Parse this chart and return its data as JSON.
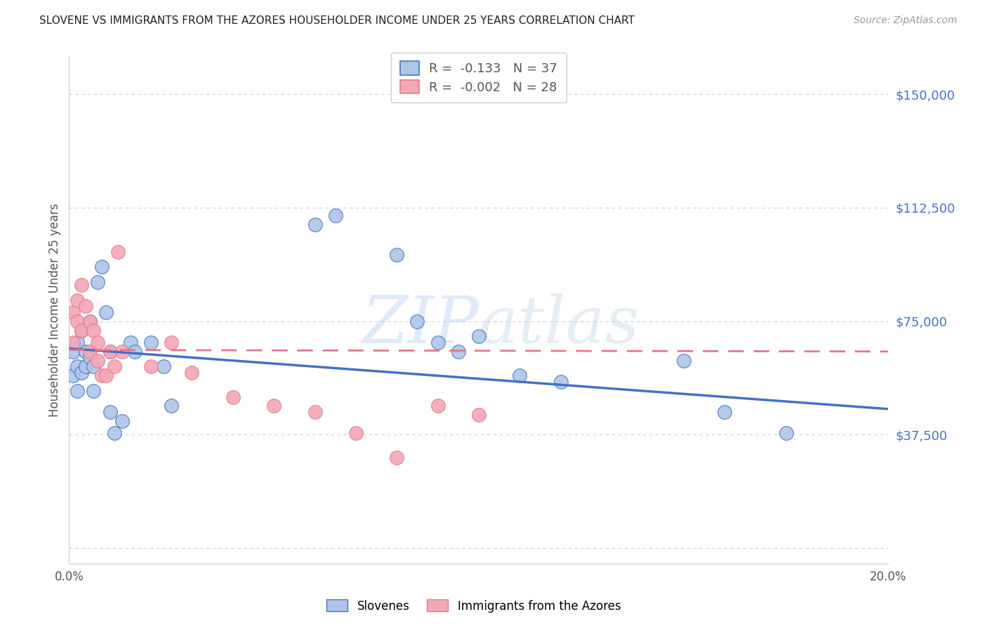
{
  "title": "SLOVENE VS IMMIGRANTS FROM THE AZORES HOUSEHOLDER INCOME UNDER 25 YEARS CORRELATION CHART",
  "source": "Source: ZipAtlas.com",
  "ylabel": "Householder Income Under 25 years",
  "watermark": "ZIPatlas",
  "xlim": [
    0.0,
    0.2
  ],
  "ylim": [
    -5000,
    162500
  ],
  "yticks": [
    0,
    37500,
    75000,
    112500,
    150000
  ],
  "ytick_labels": [
    "",
    "$37,500",
    "$75,000",
    "$112,500",
    "$150,000"
  ],
  "grid_color": "#cccccc",
  "background_color": "#ffffff",
  "blue_line_color": "#4472c4",
  "pink_line_color": "#e8758a",
  "blue_scatter_color": "#aec6e8",
  "pink_scatter_color": "#f4a7b5",
  "slovene_x": [
    0.001,
    0.001,
    0.002,
    0.002,
    0.002,
    0.003,
    0.003,
    0.004,
    0.004,
    0.005,
    0.005,
    0.006,
    0.006,
    0.007,
    0.008,
    0.009,
    0.01,
    0.01,
    0.011,
    0.013,
    0.015,
    0.016,
    0.02,
    0.023,
    0.025,
    0.06,
    0.065,
    0.08,
    0.085,
    0.09,
    0.095,
    0.1,
    0.11,
    0.12,
    0.15,
    0.16,
    0.175
  ],
  "slovene_y": [
    65000,
    57000,
    60000,
    68000,
    52000,
    72000,
    58000,
    65000,
    60000,
    75000,
    63000,
    60000,
    52000,
    88000,
    93000,
    78000,
    65000,
    45000,
    38000,
    42000,
    68000,
    65000,
    68000,
    60000,
    47000,
    107000,
    110000,
    97000,
    75000,
    68000,
    65000,
    70000,
    57000,
    55000,
    62000,
    45000,
    38000
  ],
  "azores_x": [
    0.001,
    0.001,
    0.002,
    0.002,
    0.003,
    0.003,
    0.004,
    0.005,
    0.005,
    0.006,
    0.007,
    0.007,
    0.008,
    0.009,
    0.01,
    0.011,
    0.012,
    0.013,
    0.02,
    0.025,
    0.03,
    0.04,
    0.05,
    0.06,
    0.07,
    0.08,
    0.09,
    0.1
  ],
  "azores_y": [
    78000,
    68000,
    75000,
    82000,
    72000,
    87000,
    80000,
    65000,
    75000,
    72000,
    68000,
    62000,
    57000,
    57000,
    65000,
    60000,
    98000,
    65000,
    60000,
    68000,
    58000,
    50000,
    47000,
    45000,
    38000,
    30000,
    47000,
    44000
  ],
  "blue_line_x": [
    0.0,
    0.2
  ],
  "blue_line_y": [
    66000,
    46000
  ],
  "pink_line_x": [
    0.0,
    0.2
  ],
  "pink_line_y": [
    65500,
    65000
  ],
  "legend_blue_text": "R =  -0.133   N = 37",
  "legend_pink_text": "R =  -0.002   N = 28",
  "legend_blue_R": "-0.133",
  "legend_blue_N": "37",
  "legend_pink_R": "-0.002",
  "legend_pink_N": "28"
}
